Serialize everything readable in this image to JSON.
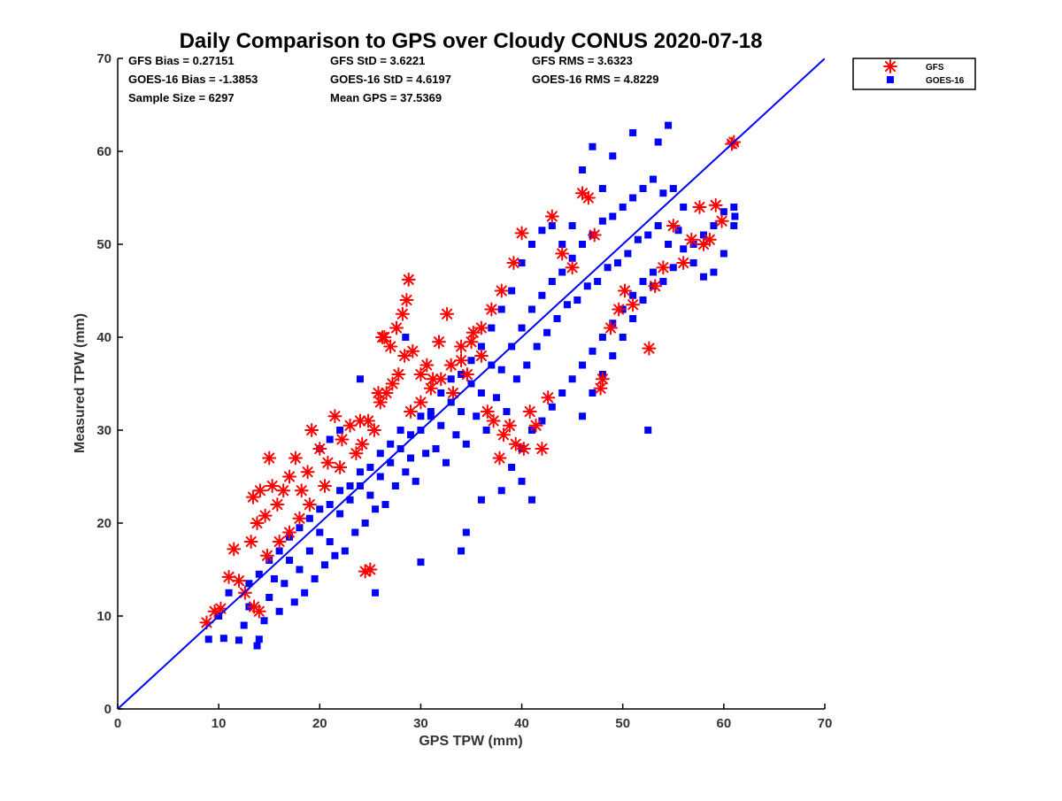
{
  "chart_data": {
    "type": "scatter",
    "title": "Daily Comparison to GPS over Cloudy CONUS 2020-07-18",
    "xlabel": "GPS TPW (mm)",
    "ylabel": "Measured TPW (mm)",
    "xlim": [
      0,
      70
    ],
    "ylim": [
      0,
      70
    ],
    "xticks": [
      0,
      10,
      20,
      30,
      40,
      50,
      60,
      70
    ],
    "yticks": [
      0,
      10,
      20,
      30,
      40,
      50,
      60,
      70
    ],
    "grid": false,
    "legend_position": "outside-top-right",
    "stats": [
      "GFS Bias = 0.27151",
      "GFS StD = 3.6221",
      "GFS RMS = 3.6323",
      "GOES-16 Bias = -1.3853",
      "GOES-16 StD = 4.6197",
      "GOES-16 RMS = 4.8229",
      "Sample Size = 6297",
      "Mean GPS = 37.5369"
    ],
    "reference_line": {
      "x": [
        0,
        70
      ],
      "y": [
        0,
        70
      ],
      "color": "#0000ff"
    },
    "series": [
      {
        "name": "GOES-16",
        "marker": "square",
        "color": "#0000ff",
        "points": [
          [
            9.0,
            7.5
          ],
          [
            10.5,
            7.6
          ],
          [
            12.0,
            7.4
          ],
          [
            13.8,
            6.8
          ],
          [
            14.0,
            7.5
          ],
          [
            10.0,
            10.0
          ],
          [
            11.0,
            12.5
          ],
          [
            12.5,
            9.0
          ],
          [
            13.0,
            11.0
          ],
          [
            14.5,
            9.5
          ],
          [
            15.0,
            12.0
          ],
          [
            15.5,
            14.0
          ],
          [
            16.0,
            10.5
          ],
          [
            16.5,
            13.5
          ],
          [
            17.0,
            16.0
          ],
          [
            17.5,
            11.5
          ],
          [
            18.0,
            15.0
          ],
          [
            18.5,
            12.5
          ],
          [
            19.0,
            17.0
          ],
          [
            19.5,
            14.0
          ],
          [
            20.0,
            19.0
          ],
          [
            20.5,
            15.5
          ],
          [
            21.0,
            18.0
          ],
          [
            21.5,
            16.5
          ],
          [
            22.0,
            21.0
          ],
          [
            22.5,
            17.0
          ],
          [
            23.0,
            22.5
          ],
          [
            23.5,
            19.0
          ],
          [
            24.0,
            24.0
          ],
          [
            24.5,
            20.0
          ],
          [
            25.0,
            23.0
          ],
          [
            25.5,
            21.5
          ],
          [
            26.0,
            25.0
          ],
          [
            26.5,
            22.0
          ],
          [
            27.0,
            26.5
          ],
          [
            27.5,
            24.0
          ],
          [
            28.0,
            28.0
          ],
          [
            28.5,
            25.5
          ],
          [
            29.0,
            27.0
          ],
          [
            29.5,
            24.5
          ],
          [
            30.0,
            30.0
          ],
          [
            30.5,
            27.5
          ],
          [
            31.0,
            31.5
          ],
          [
            31.5,
            28.0
          ],
          [
            32.0,
            30.5
          ],
          [
            32.5,
            26.5
          ],
          [
            33.0,
            33.0
          ],
          [
            33.5,
            29.5
          ],
          [
            34.0,
            32.0
          ],
          [
            34.5,
            28.5
          ],
          [
            35.0,
            35.0
          ],
          [
            35.5,
            31.5
          ],
          [
            36.0,
            34.0
          ],
          [
            36.5,
            30.0
          ],
          [
            37.0,
            37.0
          ],
          [
            37.5,
            33.5
          ],
          [
            38.0,
            36.5
          ],
          [
            38.5,
            32.0
          ],
          [
            39.0,
            39.0
          ],
          [
            39.5,
            35.5
          ],
          [
            40.0,
            41.0
          ],
          [
            40.5,
            37.0
          ],
          [
            41.0,
            43.0
          ],
          [
            41.5,
            39.0
          ],
          [
            42.0,
            44.5
          ],
          [
            42.5,
            40.5
          ],
          [
            43.0,
            46.0
          ],
          [
            43.5,
            42.0
          ],
          [
            44.0,
            47.0
          ],
          [
            44.5,
            43.5
          ],
          [
            45.0,
            48.5
          ],
          [
            45.5,
            44.0
          ],
          [
            46.0,
            50.0
          ],
          [
            46.5,
            45.5
          ],
          [
            47.0,
            51.0
          ],
          [
            47.5,
            46.0
          ],
          [
            48.0,
            52.5
          ],
          [
            48.5,
            47.5
          ],
          [
            49.0,
            53.0
          ],
          [
            49.5,
            48.0
          ],
          [
            50.0,
            54.0
          ],
          [
            50.5,
            49.0
          ],
          [
            51.0,
            55.0
          ],
          [
            51.5,
            50.5
          ],
          [
            52.0,
            56.0
          ],
          [
            52.5,
            51.0
          ],
          [
            53.0,
            57.0
          ],
          [
            53.5,
            52.0
          ],
          [
            54.0,
            55.5
          ],
          [
            54.5,
            50.0
          ],
          [
            55.0,
            56.0
          ],
          [
            55.5,
            51.5
          ],
          [
            56.0,
            54.0
          ],
          [
            57.0,
            48.0
          ],
          [
            58.0,
            46.5
          ],
          [
            59.0,
            47.0
          ],
          [
            60.0,
            49.0
          ],
          [
            61.0,
            52.0
          ],
          [
            61.1,
            53.0
          ],
          [
            52.5,
            30.0
          ],
          [
            51.0,
            62.0
          ],
          [
            53.5,
            61.0
          ],
          [
            54.5,
            62.8
          ],
          [
            49.0,
            59.5
          ],
          [
            48.0,
            56.0
          ],
          [
            47.0,
            60.5
          ],
          [
            46.0,
            58.0
          ],
          [
            45.0,
            52.0
          ],
          [
            44.0,
            50.0
          ],
          [
            43.0,
            52.0
          ],
          [
            42.0,
            51.5
          ],
          [
            41.0,
            50.0
          ],
          [
            40.0,
            48.0
          ],
          [
            39.0,
            45.0
          ],
          [
            38.0,
            43.0
          ],
          [
            37.0,
            41.0
          ],
          [
            36.0,
            39.0
          ],
          [
            35.0,
            37.5
          ],
          [
            34.0,
            36.0
          ],
          [
            33.0,
            35.5
          ],
          [
            32.0,
            34.0
          ],
          [
            31.0,
            32.0
          ],
          [
            30.0,
            31.5
          ],
          [
            29.0,
            29.5
          ],
          [
            28.0,
            30.0
          ],
          [
            27.0,
            28.5
          ],
          [
            26.0,
            27.5
          ],
          [
            25.0,
            26.0
          ],
          [
            24.0,
            25.5
          ],
          [
            23.0,
            24.0
          ],
          [
            22.0,
            23.5
          ],
          [
            21.0,
            22.0
          ],
          [
            20.0,
            21.5
          ],
          [
            19.0,
            20.5
          ],
          [
            18.0,
            19.5
          ],
          [
            17.0,
            18.5
          ],
          [
            16.0,
            17.0
          ],
          [
            15.0,
            16.0
          ],
          [
            14.0,
            14.5
          ],
          [
            13.0,
            13.5
          ],
          [
            36.0,
            22.5
          ],
          [
            38.0,
            23.5
          ],
          [
            40.0,
            24.5
          ],
          [
            41.0,
            22.5
          ],
          [
            34.0,
            17.0
          ],
          [
            30.0,
            15.8
          ],
          [
            34.5,
            19.0
          ],
          [
            25.5,
            12.5
          ],
          [
            28.5,
            40.0
          ],
          [
            24.0,
            35.5
          ],
          [
            22.0,
            30.0
          ],
          [
            21.0,
            29.0
          ],
          [
            20.0,
            28.0
          ],
          [
            46.0,
            31.5
          ],
          [
            47.0,
            34.0
          ],
          [
            48.0,
            36.0
          ],
          [
            49.0,
            38.0
          ],
          [
            50.0,
            40.0
          ],
          [
            51.0,
            42.0
          ],
          [
            52.0,
            44.0
          ],
          [
            53.0,
            45.5
          ],
          [
            54.0,
            46.0
          ],
          [
            55.0,
            47.5
          ],
          [
            56.0,
            49.5
          ],
          [
            57.0,
            50.0
          ],
          [
            58.0,
            51.0
          ],
          [
            59.0,
            52.0
          ],
          [
            60.0,
            53.5
          ],
          [
            61.0,
            54.0
          ],
          [
            39.0,
            26.0
          ],
          [
            40.0,
            28.0
          ],
          [
            41.0,
            30.0
          ],
          [
            42.0,
            31.0
          ],
          [
            43.0,
            32.5
          ],
          [
            44.0,
            34.0
          ],
          [
            45.0,
            35.5
          ],
          [
            46.0,
            37.0
          ],
          [
            47.0,
            38.5
          ],
          [
            48.0,
            40.0
          ],
          [
            49.0,
            41.5
          ],
          [
            50.0,
            43.0
          ],
          [
            51.0,
            44.5
          ],
          [
            52.0,
            46.0
          ],
          [
            53.0,
            47.0
          ]
        ]
      },
      {
        "name": "GFS",
        "marker": "asterisk",
        "color": "#ff0000",
        "points": [
          [
            8.8,
            9.3
          ],
          [
            9.6,
            10.5
          ],
          [
            10.2,
            10.8
          ],
          [
            11.0,
            14.2
          ],
          [
            11.5,
            17.2
          ],
          [
            12.0,
            13.8
          ],
          [
            12.6,
            12.5
          ],
          [
            13.2,
            18.0
          ],
          [
            13.8,
            20.0
          ],
          [
            13.4,
            22.8
          ],
          [
            14.1,
            23.5
          ],
          [
            14.6,
            20.8
          ],
          [
            15.0,
            27.0
          ],
          [
            15.3,
            24.0
          ],
          [
            15.8,
            22.0
          ],
          [
            16.4,
            23.5
          ],
          [
            17.0,
            25.0
          ],
          [
            17.6,
            27.0
          ],
          [
            18.2,
            23.5
          ],
          [
            18.8,
            25.5
          ],
          [
            19.2,
            30.0
          ],
          [
            20.0,
            28.0
          ],
          [
            20.8,
            26.5
          ],
          [
            21.5,
            31.5
          ],
          [
            22.2,
            29.0
          ],
          [
            23.0,
            30.5
          ],
          [
            23.6,
            27.5
          ],
          [
            24.2,
            28.5
          ],
          [
            24.8,
            31.0
          ],
          [
            25.4,
            30.0
          ],
          [
            26.0,
            33.0
          ],
          [
            26.6,
            34.0
          ],
          [
            27.2,
            35.0
          ],
          [
            27.8,
            36.0
          ],
          [
            28.4,
            38.0
          ],
          [
            28.8,
            46.2
          ],
          [
            28.6,
            44.0
          ],
          [
            28.2,
            42.5
          ],
          [
            27.6,
            41.0
          ],
          [
            27.0,
            39.0
          ],
          [
            26.4,
            40.0
          ],
          [
            29.2,
            38.5
          ],
          [
            30.0,
            36.0
          ],
          [
            30.6,
            37.0
          ],
          [
            31.2,
            35.5
          ],
          [
            31.8,
            39.5
          ],
          [
            32.6,
            42.5
          ],
          [
            33.2,
            34.0
          ],
          [
            34.0,
            37.5
          ],
          [
            34.6,
            36.0
          ],
          [
            35.2,
            40.5
          ],
          [
            36.0,
            38.0
          ],
          [
            36.6,
            32.0
          ],
          [
            37.2,
            31.0
          ],
          [
            37.8,
            27.0
          ],
          [
            38.2,
            29.5
          ],
          [
            38.8,
            30.5
          ],
          [
            39.4,
            28.5
          ],
          [
            40.2,
            28.0
          ],
          [
            40.8,
            32.0
          ],
          [
            41.4,
            30.5
          ],
          [
            42.0,
            28.0
          ],
          [
            42.6,
            33.5
          ],
          [
            43.0,
            53.0
          ],
          [
            44.0,
            49.0
          ],
          [
            45.0,
            47.5
          ],
          [
            46.0,
            55.5
          ],
          [
            46.6,
            55.0
          ],
          [
            47.2,
            51.0
          ],
          [
            47.8,
            34.5
          ],
          [
            48.0,
            35.5
          ],
          [
            48.8,
            41.0
          ],
          [
            49.6,
            43.0
          ],
          [
            50.2,
            45.0
          ],
          [
            51.0,
            43.5
          ],
          [
            52.6,
            38.8
          ],
          [
            53.2,
            45.5
          ],
          [
            54.0,
            47.5
          ],
          [
            55.0,
            52.0
          ],
          [
            56.0,
            48.0
          ],
          [
            56.8,
            50.5
          ],
          [
            57.6,
            54.0
          ],
          [
            58.0,
            50.0
          ],
          [
            58.6,
            50.5
          ],
          [
            59.2,
            54.2
          ],
          [
            59.8,
            52.5
          ],
          [
            61.0,
            61.0
          ],
          [
            60.8,
            60.8
          ],
          [
            40.0,
            51.2
          ],
          [
            39.2,
            48.0
          ],
          [
            38.0,
            45.0
          ],
          [
            37.0,
            43.0
          ],
          [
            36.0,
            41.0
          ],
          [
            35.0,
            39.5
          ],
          [
            34.0,
            39.0
          ],
          [
            33.0,
            37.0
          ],
          [
            32.0,
            35.5
          ],
          [
            31.0,
            34.5
          ],
          [
            30.0,
            33.0
          ],
          [
            29.0,
            32.0
          ],
          [
            25.8,
            34.0
          ],
          [
            26.2,
            40.0
          ],
          [
            24.0,
            31.0
          ],
          [
            22.0,
            26.0
          ],
          [
            20.5,
            24.0
          ],
          [
            19.0,
            22.0
          ],
          [
            18.0,
            20.5
          ],
          [
            17.0,
            19.0
          ],
          [
            16.0,
            18.0
          ],
          [
            14.8,
            16.5
          ],
          [
            14.0,
            10.5
          ],
          [
            13.5,
            11.0
          ],
          [
            24.5,
            14.8
          ],
          [
            25.0,
            15.0
          ]
        ]
      }
    ]
  }
}
